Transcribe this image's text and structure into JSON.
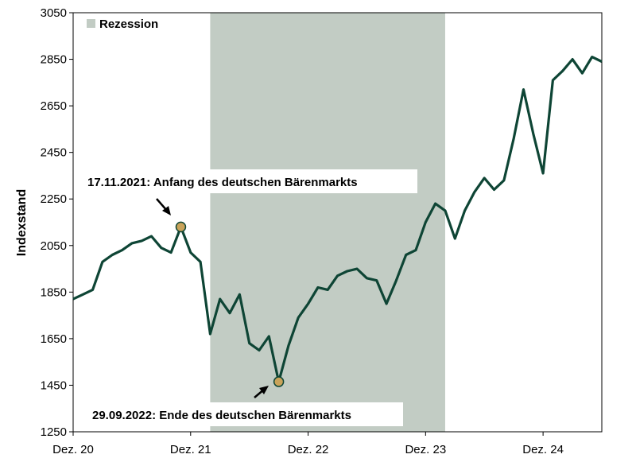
{
  "chart_data": {
    "type": "line",
    "title": "",
    "xlabel": "",
    "ylabel": "Indexstand",
    "ylim": [
      1250,
      3050
    ],
    "yticks": [
      1250,
      1450,
      1650,
      1850,
      2050,
      2250,
      2450,
      2650,
      2850,
      3050
    ],
    "xlim": [
      "2020-12",
      "2025-06"
    ],
    "xticks": [
      {
        "label": "Dez. 20",
        "x": "2020-12"
      },
      {
        "label": "Dez. 21",
        "x": "2021-12"
      },
      {
        "label": "Dez. 22",
        "x": "2022-12"
      },
      {
        "label": "Dez. 23",
        "x": "2023-12"
      },
      {
        "label": "Dez. 24",
        "x": "2024-12"
      }
    ],
    "grid": false,
    "legend": {
      "position": "top-left",
      "label": "Rezession",
      "color": "#c2ccc4"
    },
    "recession": {
      "start": "2022-02",
      "end": "2024-02"
    },
    "series": [
      {
        "name": "",
        "color": "#0e4535",
        "points": [
          [
            "2020-12",
            1820
          ],
          [
            "2021-01",
            1840
          ],
          [
            "2021-02",
            1860
          ],
          [
            "2021-03",
            1980
          ],
          [
            "2021-04",
            2010
          ],
          [
            "2021-05",
            2030
          ],
          [
            "2021-06",
            2060
          ],
          [
            "2021-07",
            2070
          ],
          [
            "2021-08",
            2090
          ],
          [
            "2021-09",
            2040
          ],
          [
            "2021-10",
            2020
          ],
          [
            "2021-11",
            2130
          ],
          [
            "2021-12",
            2020
          ],
          [
            "2022-01",
            1980
          ],
          [
            "2022-02",
            1670
          ],
          [
            "2022-03",
            1820
          ],
          [
            "2022-04",
            1760
          ],
          [
            "2022-05",
            1840
          ],
          [
            "2022-06",
            1630
          ],
          [
            "2022-07",
            1600
          ],
          [
            "2022-08",
            1660
          ],
          [
            "2022-09",
            1465
          ],
          [
            "2022-10",
            1620
          ],
          [
            "2022-11",
            1740
          ],
          [
            "2022-12",
            1800
          ],
          [
            "2023-01",
            1870
          ],
          [
            "2023-02",
            1860
          ],
          [
            "2023-03",
            1920
          ],
          [
            "2023-04",
            1940
          ],
          [
            "2023-05",
            1950
          ],
          [
            "2023-06",
            1910
          ],
          [
            "2023-07",
            1900
          ],
          [
            "2023-08",
            1800
          ],
          [
            "2023-09",
            1900
          ],
          [
            "2023-10",
            2010
          ],
          [
            "2023-11",
            2030
          ],
          [
            "2023-12",
            2150
          ],
          [
            "2024-01",
            2230
          ],
          [
            "2024-02",
            2200
          ],
          [
            "2024-03",
            2080
          ],
          [
            "2024-04",
            2200
          ],
          [
            "2024-05",
            2280
          ],
          [
            "2024-06",
            2340
          ],
          [
            "2024-07",
            2290
          ],
          [
            "2024-08",
            2330
          ],
          [
            "2024-09",
            2510
          ],
          [
            "2024-10",
            2720
          ],
          [
            "2024-11",
            2530
          ],
          [
            "2024-12",
            2360
          ],
          [
            "2025-01",
            2760
          ],
          [
            "2025-02",
            2800
          ],
          [
            "2025-03",
            2850
          ],
          [
            "2025-04",
            2790
          ],
          [
            "2025-05",
            2860
          ],
          [
            "2025-06",
            2840
          ]
        ]
      }
    ],
    "annotations": [
      {
        "text": "17.11.2021: Anfang des deutschen Bärenmarkts",
        "x": "2021-11",
        "y": 2130
      },
      {
        "text": "29.09.2022: Ende des deutschen Bärenmarkts",
        "x": "2022-09",
        "y": 1465
      }
    ]
  }
}
